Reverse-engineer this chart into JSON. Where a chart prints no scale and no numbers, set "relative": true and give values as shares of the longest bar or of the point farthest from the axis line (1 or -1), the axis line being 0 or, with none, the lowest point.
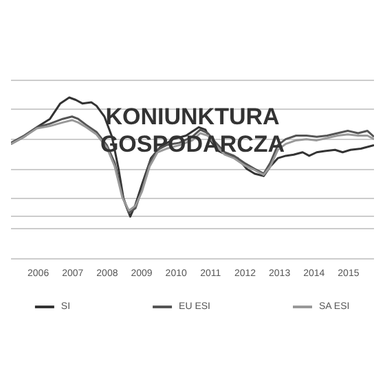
{
  "chart_data": {
    "type": "line",
    "title": "KONIUNKTURA\nGOSPODARCZA",
    "relative": true,
    "grid": "y",
    "legend": "bottom",
    "marker": "none",
    "line_style": "solid",
    "xlim": [
      2005.71,
      2016.24
    ],
    "xticks": [
      {
        "value": 2006.5,
        "label": "2006"
      },
      {
        "value": 2007.5,
        "label": "2007"
      },
      {
        "value": 2008.5,
        "label": "2008"
      },
      {
        "value": 2009.5,
        "label": "2009"
      },
      {
        "value": 2010.5,
        "label": "2010"
      },
      {
        "value": 2011.5,
        "label": "2011"
      },
      {
        "value": 2012.5,
        "label": "2012"
      },
      {
        "value": 2013.5,
        "label": "2013"
      },
      {
        "value": 2014.5,
        "label": "2014"
      },
      {
        "value": 2015.5,
        "label": "2015"
      }
    ],
    "series": [
      {
        "name": "SI",
        "color": "#333333",
        "x": [
          2005.71,
          2006.09,
          2006.46,
          2006.84,
          2007.14,
          2007.4,
          2007.59,
          2007.78,
          2008.04,
          2008.19,
          2008.42,
          2008.64,
          2008.83,
          2008.98,
          2009.17,
          2009.32,
          2009.51,
          2009.77,
          2010.03,
          2010.41,
          2010.79,
          2011.16,
          2011.35,
          2011.54,
          2011.73,
          2012.03,
          2012.29,
          2012.55,
          2012.78,
          2013.04,
          2013.23,
          2013.45,
          2013.68,
          2013.91,
          2014.17,
          2014.36,
          2014.58,
          2014.81,
          2015.11,
          2015.33,
          2015.56,
          2015.86,
          2016.24
        ],
        "values": [
          0.61,
          0.67,
          0.75,
          0.82,
          0.95,
          1.0,
          0.98,
          0.95,
          0.96,
          0.93,
          0.84,
          0.67,
          0.4,
          0.14,
          0,
          0.1,
          0.27,
          0.49,
          0.58,
          0.65,
          0.68,
          0.75,
          0.73,
          0.62,
          0.55,
          0.51,
          0.49,
          0.4,
          0.36,
          0.34,
          0.42,
          0.49,
          0.51,
          0.52,
          0.54,
          0.51,
          0.54,
          0.55,
          0.56,
          0.54,
          0.56,
          0.57,
          0.6
        ]
      },
      {
        "name": "EU ESI",
        "color": "#555555",
        "x": [
          2005.71,
          2006.09,
          2006.46,
          2006.84,
          2007.21,
          2007.48,
          2007.66,
          2007.89,
          2008.19,
          2008.49,
          2008.72,
          2008.94,
          2009.13,
          2009.32,
          2009.51,
          2009.73,
          2009.96,
          2010.22,
          2010.6,
          2010.97,
          2011.2,
          2011.42,
          2011.65,
          2011.91,
          2012.18,
          2012.48,
          2012.78,
          2013.04,
          2013.23,
          2013.45,
          2013.68,
          2013.98,
          2014.28,
          2014.58,
          2014.88,
          2015.18,
          2015.48,
          2015.78,
          2016.05,
          2016.24
        ],
        "values": [
          0.62,
          0.68,
          0.75,
          0.78,
          0.82,
          0.84,
          0.82,
          0.77,
          0.71,
          0.6,
          0.45,
          0.18,
          0.03,
          0.07,
          0.23,
          0.45,
          0.56,
          0.6,
          0.62,
          0.67,
          0.73,
          0.7,
          0.62,
          0.54,
          0.51,
          0.45,
          0.4,
          0.36,
          0.45,
          0.6,
          0.65,
          0.68,
          0.68,
          0.67,
          0.68,
          0.7,
          0.72,
          0.7,
          0.72,
          0.67
        ]
      },
      {
        "name": "SA ESI",
        "color": "#999999",
        "x": [
          2005.71,
          2006.09,
          2006.46,
          2006.84,
          2007.21,
          2007.48,
          2007.66,
          2007.89,
          2008.19,
          2008.49,
          2008.72,
          2008.94,
          2009.13,
          2009.32,
          2009.51,
          2009.73,
          2009.96,
          2010.22,
          2010.6,
          2010.97,
          2011.2,
          2011.42,
          2011.65,
          2011.91,
          2012.18,
          2012.48,
          2012.78,
          2013.04,
          2013.23,
          2013.45,
          2013.68,
          2013.98,
          2014.28,
          2014.58,
          2014.88,
          2015.18,
          2015.48,
          2015.78,
          2016.05,
          2016.24
        ],
        "values": [
          0.61,
          0.67,
          0.74,
          0.76,
          0.79,
          0.81,
          0.79,
          0.75,
          0.69,
          0.58,
          0.42,
          0.16,
          0.05,
          0.09,
          0.21,
          0.42,
          0.54,
          0.57,
          0.6,
          0.64,
          0.7,
          0.68,
          0.6,
          0.52,
          0.49,
          0.43,
          0.39,
          0.35,
          0.42,
          0.56,
          0.61,
          0.64,
          0.65,
          0.64,
          0.66,
          0.68,
          0.69,
          0.68,
          0.68,
          0.65
        ]
      }
    ]
  }
}
